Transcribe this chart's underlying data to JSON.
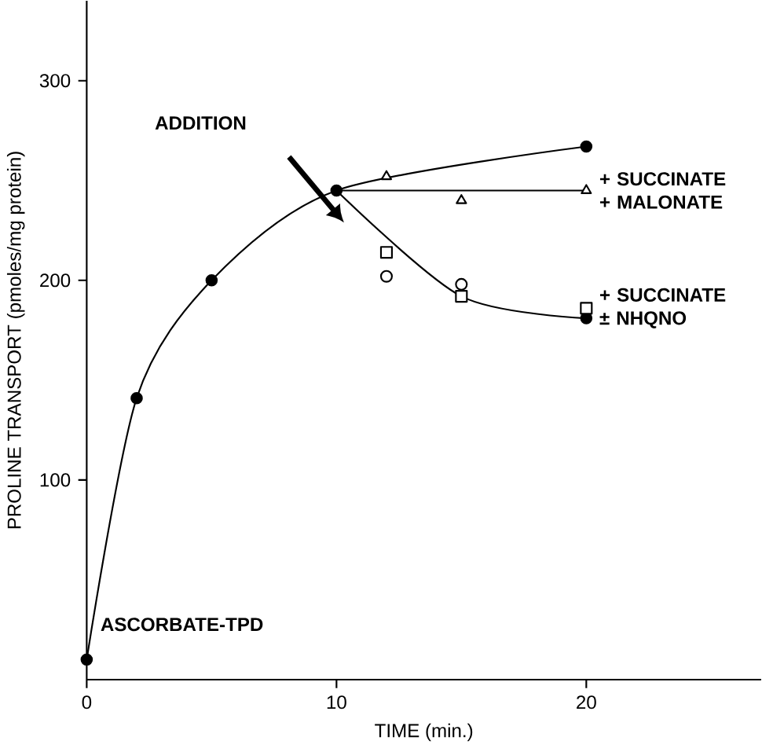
{
  "chart_data": {
    "type": "line",
    "xlabel": "TIME (min.)",
    "ylabel": "PROLINE TRANSPORT (pmoles/mg protein)",
    "xlim": [
      0,
      27
    ],
    "ylim": [
      0,
      340
    ],
    "xticks": [
      0,
      10,
      20
    ],
    "yticks": [
      100,
      200,
      300
    ],
    "grid": false,
    "series": [
      {
        "color": "#000000",
        "marker": "circle",
        "x": [
          0,
          2,
          5,
          10,
          20
        ],
        "values": [
          10,
          141,
          200,
          245,
          267
        ]
      },
      {
        "color": "#000000",
        "x": [
          10,
          20
        ],
        "values": [
          245,
          245
        ]
      },
      {
        "color": "#000000",
        "x": [
          10,
          15,
          20
        ],
        "values": [
          245,
          192,
          181
        ]
      },
      {
        "color": "#000000",
        "marker": "circle",
        "x": [
          20
        ],
        "values": [
          181
        ]
      },
      {
        "type": "scatter",
        "name": "+ SUCCINATE + MALONATE",
        "color": "#000000",
        "marker": "triangle",
        "x": [
          12,
          15,
          20
        ],
        "values": [
          252,
          240,
          245
        ]
      },
      {
        "type": "scatter",
        "name": "+ SUCCINATE ± NHQNO",
        "color": "#000000",
        "marker": "square",
        "x": [
          12,
          15,
          20
        ],
        "values": [
          214,
          192,
          186
        ]
      },
      {
        "type": "scatter",
        "color": "#000000",
        "marker": "circle",
        "x": [
          12,
          15
        ],
        "values": [
          202,
          198
        ]
      }
    ],
    "annotations": [
      "ADDITION",
      {
        "text": "ASCORBATE-TPD",
        "x": 0,
        "y": 10
      }
    ]
  }
}
